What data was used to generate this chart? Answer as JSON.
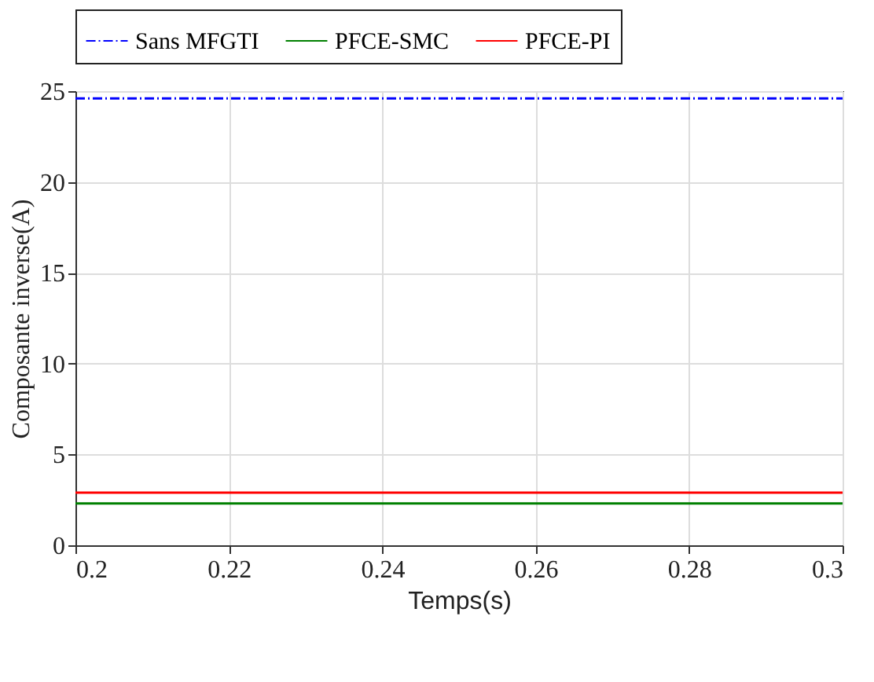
{
  "chart_data": {
    "type": "line",
    "xlabel": "Temps(s)",
    "ylabel": "Composante inverse(A)",
    "x": [
      0.2,
      0.3
    ],
    "series": [
      {
        "name": "Sans MFGTI",
        "color": "#0000ff",
        "line_style": "dashed",
        "values": [
          24.6,
          24.6
        ]
      },
      {
        "name": "PFCE-SMC",
        "color": "#008000",
        "line_style": "solid",
        "values": [
          2.3,
          2.3
        ]
      },
      {
        "name": "PFCE-PI",
        "color": "#ff0000",
        "line_style": "solid",
        "values": [
          2.9,
          2.9
        ]
      }
    ],
    "xlim": [
      0.2,
      0.3
    ],
    "xticks": [
      0.2,
      0.22,
      0.24,
      0.26,
      0.28,
      0.3
    ],
    "ylim": [
      0,
      25
    ],
    "yticks": [
      0,
      5,
      10,
      15,
      20,
      25
    ],
    "grid": true,
    "legend": "top",
    "marker": "none"
  }
}
